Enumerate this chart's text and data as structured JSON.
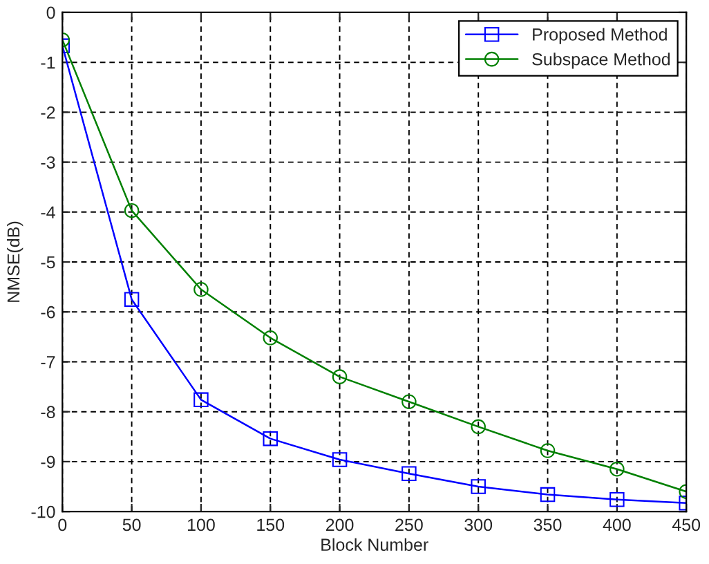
{
  "chart_data": {
    "type": "line",
    "xlabel": "Block Number",
    "ylabel": "NMSE(dB)",
    "x": [
      0,
      50,
      100,
      150,
      200,
      250,
      300,
      350,
      400,
      450
    ],
    "series": [
      {
        "name": "Proposed Method",
        "color": "#0000ff",
        "marker": "square",
        "values": [
          -0.67,
          -5.75,
          -7.76,
          -8.54,
          -8.96,
          -9.24,
          -9.5,
          -9.66,
          -9.76,
          -9.83
        ]
      },
      {
        "name": "Subspace Method",
        "color": "#008000",
        "marker": "circle",
        "values": [
          -0.55,
          -3.97,
          -5.55,
          -6.52,
          -7.3,
          -7.8,
          -8.3,
          -8.78,
          -9.15,
          -9.6
        ]
      }
    ],
    "xlim": [
      0,
      450
    ],
    "xticks": [
      0,
      50,
      100,
      150,
      200,
      250,
      300,
      350,
      400,
      450
    ],
    "ylim": [
      -10,
      0
    ],
    "yticks": [
      -10,
      -9,
      -8,
      -7,
      -6,
      -5,
      -4,
      -3,
      -2,
      -1,
      0
    ],
    "grid": true,
    "legend": "top right",
    "line_style": "solid"
  }
}
